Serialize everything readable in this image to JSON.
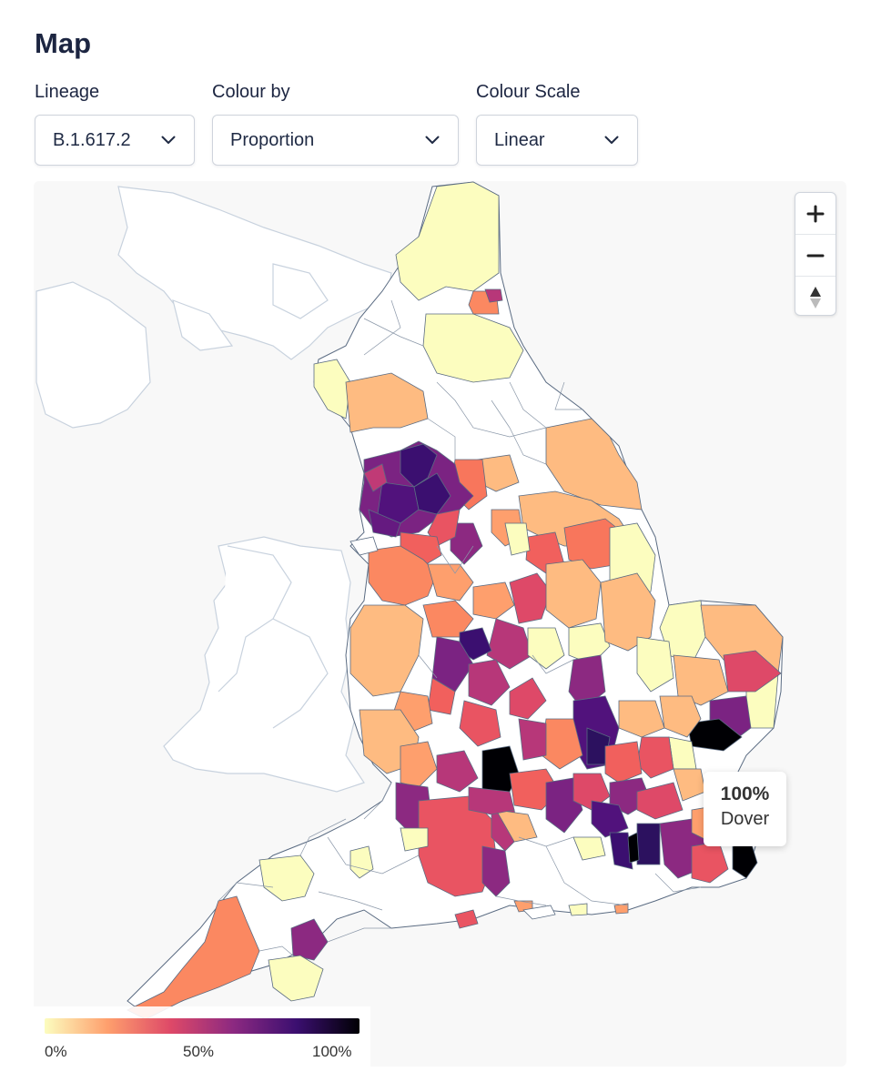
{
  "title": "Map",
  "controls": {
    "lineage": {
      "label": "Lineage",
      "value": "B.1.617.2"
    },
    "colour_by": {
      "label": "Colour by",
      "value": "Proportion"
    },
    "colour_scale": {
      "label": "Colour Scale",
      "value": "Linear"
    }
  },
  "zoom": {
    "zoom_in": "+",
    "zoom_out": "−",
    "reset_north": "▲"
  },
  "tooltip": {
    "value": "100%",
    "name": "Dover"
  },
  "legend": {
    "ticks": [
      "0%",
      "50%",
      "100%"
    ],
    "colors": [
      "#fcfdbf",
      "#fe9f6d",
      "#de4968",
      "#8c2981",
      "#3b0f70",
      "#000004"
    ]
  },
  "colors": {
    "background": "#f8f8f8",
    "no_data": "#ffffff",
    "boundary": "#5a6b82",
    "neighbour_boundary": "#c8d2de"
  }
}
